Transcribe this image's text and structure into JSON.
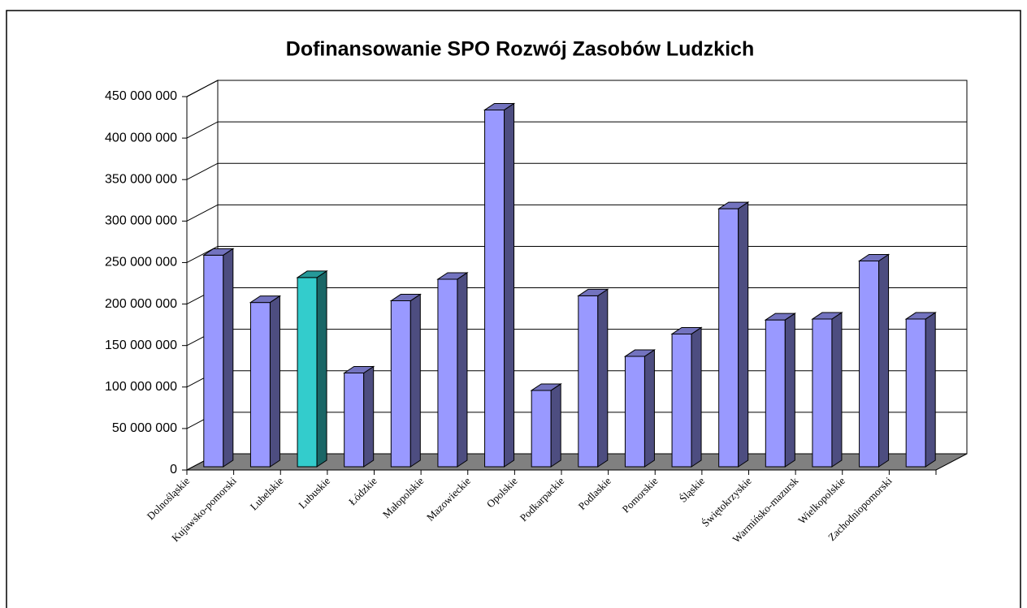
{
  "chart_data": {
    "type": "bar3d",
    "title": "Dofinansowanie SPO Rozwój Zasobów Ludzkich",
    "categories": [
      "Dolnośląskie",
      "Kujawsko-pomorski",
      "Lubelskie",
      "Lubuskie",
      "Łódzkie",
      "Małopolskie",
      "Mazowieckie",
      "Opolskie",
      "Podkarpackie",
      "Podlaskie",
      "Pomorskie",
      "Śląskie",
      "Świętokrzyskie",
      "Warmińsko-mazursk",
      "Wielkopolskie",
      "Zachodniopomorski"
    ],
    "values": [
      255000000,
      198000000,
      228000000,
      113000000,
      200000000,
      226000000,
      430000000,
      92000000,
      206000000,
      133000000,
      160000000,
      311000000,
      177000000,
      178000000,
      248000000,
      178000000
    ],
    "colors": [
      "#9999ff",
      "#9999ff",
      "#33cccc",
      "#9999ff",
      "#9999ff",
      "#9999ff",
      "#9999ff",
      "#9999ff",
      "#9999ff",
      "#9999ff",
      "#9999ff",
      "#9999ff",
      "#9999ff",
      "#9999ff",
      "#9999ff",
      "#9999ff"
    ],
    "ylim": [
      0,
      450000000
    ],
    "yticks": [
      0,
      {
        "value": 50000000,
        "label": "50 000 000"
      },
      {
        "value": 100000000,
        "label": "100 000 000"
      },
      {
        "value": 150000000,
        "label": "150 000 000"
      },
      {
        "value": 200000000,
        "label": "200 000 000"
      },
      {
        "value": 250000000,
        "label": "250 000 000"
      },
      {
        "value": 300000000,
        "label": "300 000 000"
      },
      {
        "value": 350000000,
        "label": "350 000 000"
      },
      {
        "value": 400000000,
        "label": "400 000 000"
      },
      {
        "value": 450000000,
        "label": "450 000 000"
      }
    ],
    "grid": true
  }
}
